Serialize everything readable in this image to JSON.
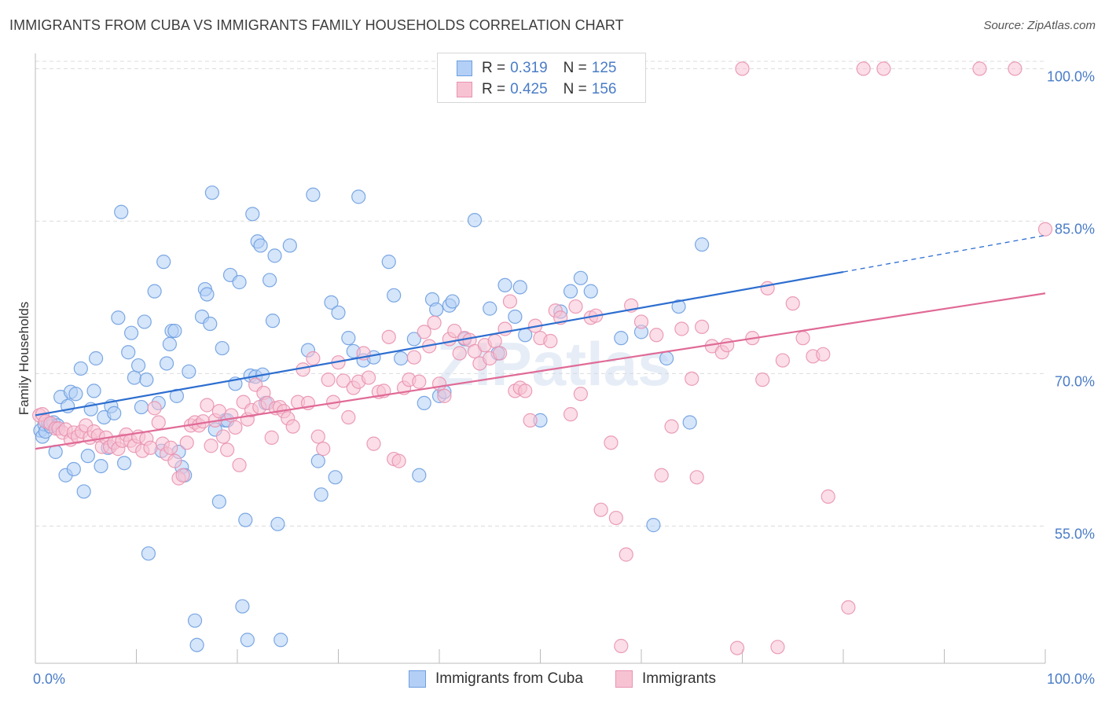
{
  "title": "IMMIGRANTS FROM CUBA VS IMMIGRANTS FAMILY HOUSEHOLDS CORRELATION CHART",
  "source": "Source: ZipAtlas.com",
  "watermark": "ZIPatlas",
  "legend": {
    "series": [
      {
        "r_label": "R =",
        "r_value": "0.319",
        "n_label": "N =",
        "n_value": "125"
      },
      {
        "r_label": "R =",
        "r_value": "0.425",
        "n_label": "N =",
        "n_value": "156"
      }
    ]
  },
  "bottom_legend": [
    "Immigrants from Cuba",
    "Immigrants"
  ],
  "colors": {
    "blue_fill": "#b3cff5",
    "blue_stroke": "#6e9fe0",
    "blue_line": "#2d6ed0",
    "pink_fill": "#f7c3d3",
    "pink_stroke": "#e992b0",
    "pink_line": "#e06a96",
    "grid": "#dcdcdc",
    "axis": "#bbbbbb",
    "tick_text": "#4a7cc7"
  },
  "chart_data": {
    "type": "scatter",
    "title": "IMMIGRANTS FROM CUBA VS IMMIGRANTS FAMILY HOUSEHOLDS CORRELATION CHART",
    "xlabel": "",
    "ylabel": "Family Households",
    "xlim": [
      0,
      100
    ],
    "ylim": [
      41.5,
      101.5
    ],
    "x_tick_labels": [
      "0.0%",
      "100.0%"
    ],
    "y_tick_labels": [
      "55.0%",
      "70.0%",
      "85.0%",
      "100.0%"
    ],
    "y_ticks": [
      55,
      70,
      85,
      100
    ],
    "grid": true,
    "legend_position": "top-center",
    "series": [
      {
        "name": "Immigrants from Cuba",
        "trend": {
          "x0": 0,
          "y0": 65.9,
          "x1": 80,
          "y1": 80.0,
          "dashed_to_x": 100,
          "dashed_to_y": 83.6
        },
        "points": [
          [
            0.5,
            64.4
          ],
          [
            0.7,
            63.8
          ],
          [
            0.9,
            65.0
          ],
          [
            1.0,
            64.3
          ],
          [
            1.3,
            65.1
          ],
          [
            1.5,
            64.8
          ],
          [
            1.8,
            65.2
          ],
          [
            2.0,
            62.3
          ],
          [
            2.2,
            64.9
          ],
          [
            2.5,
            67.7
          ],
          [
            3.0,
            60.0
          ],
          [
            3.2,
            66.8
          ],
          [
            3.5,
            68.2
          ],
          [
            3.8,
            60.6
          ],
          [
            4.0,
            68.0
          ],
          [
            4.5,
            70.5
          ],
          [
            4.8,
            58.4
          ],
          [
            5.2,
            61.9
          ],
          [
            5.5,
            66.5
          ],
          [
            5.8,
            68.3
          ],
          [
            6.0,
            71.5
          ],
          [
            6.5,
            60.9
          ],
          [
            6.8,
            65.7
          ],
          [
            7.2,
            62.7
          ],
          [
            7.5,
            66.8
          ],
          [
            7.8,
            66.1
          ],
          [
            8.2,
            75.5
          ],
          [
            8.5,
            85.9
          ],
          [
            8.8,
            61.2
          ],
          [
            9.2,
            72.1
          ],
          [
            9.5,
            74.0
          ],
          [
            9.8,
            69.6
          ],
          [
            10.2,
            70.8
          ],
          [
            10.5,
            66.7
          ],
          [
            10.8,
            75.1
          ],
          [
            11.0,
            69.4
          ],
          [
            11.2,
            52.3
          ],
          [
            11.8,
            78.1
          ],
          [
            12.2,
            67.1
          ],
          [
            12.5,
            62.4
          ],
          [
            12.7,
            81.0
          ],
          [
            13.0,
            71.0
          ],
          [
            13.3,
            72.9
          ],
          [
            13.5,
            74.2
          ],
          [
            13.8,
            74.2
          ],
          [
            14.0,
            67.8
          ],
          [
            14.2,
            62.3
          ],
          [
            14.5,
            60.8
          ],
          [
            14.8,
            60.0
          ],
          [
            15.2,
            70.2
          ],
          [
            15.8,
            45.7
          ],
          [
            16.0,
            43.3
          ],
          [
            16.5,
            75.6
          ],
          [
            16.8,
            78.3
          ],
          [
            17.0,
            77.8
          ],
          [
            17.3,
            74.9
          ],
          [
            17.5,
            87.8
          ],
          [
            17.8,
            64.5
          ],
          [
            18.2,
            57.4
          ],
          [
            18.5,
            72.5
          ],
          [
            18.8,
            65.4
          ],
          [
            19.0,
            65.4
          ],
          [
            19.3,
            79.7
          ],
          [
            19.8,
            69.0
          ],
          [
            20.2,
            79.0
          ],
          [
            20.5,
            47.1
          ],
          [
            20.8,
            55.6
          ],
          [
            21.0,
            43.8
          ],
          [
            21.3,
            69.8
          ],
          [
            21.5,
            85.7
          ],
          [
            21.8,
            69.7
          ],
          [
            22.0,
            83.0
          ],
          [
            22.3,
            82.6
          ],
          [
            22.5,
            69.9
          ],
          [
            22.8,
            67.1
          ],
          [
            23.2,
            79.2
          ],
          [
            23.5,
            75.2
          ],
          [
            23.7,
            81.6
          ],
          [
            24.0,
            55.2
          ],
          [
            24.3,
            43.8
          ],
          [
            25.2,
            82.6
          ],
          [
            27.0,
            72.3
          ],
          [
            27.5,
            87.6
          ],
          [
            28.0,
            61.4
          ],
          [
            28.3,
            58.1
          ],
          [
            29.3,
            77.0
          ],
          [
            29.7,
            59.8
          ],
          [
            30.0,
            76.0
          ],
          [
            31.0,
            73.5
          ],
          [
            31.5,
            72.2
          ],
          [
            32.0,
            87.4
          ],
          [
            32.5,
            71.3
          ],
          [
            33.5,
            71.6
          ],
          [
            35.0,
            81.0
          ],
          [
            35.5,
            77.7
          ],
          [
            36.2,
            71.5
          ],
          [
            37.5,
            73.4
          ],
          [
            38.0,
            60.0
          ],
          [
            38.5,
            67.1
          ],
          [
            39.3,
            77.3
          ],
          [
            39.7,
            76.3
          ],
          [
            40.0,
            67.8
          ],
          [
            40.5,
            68.2
          ],
          [
            41.0,
            76.7
          ],
          [
            41.3,
            77.1
          ],
          [
            42.5,
            73.4
          ],
          [
            43.5,
            85.1
          ],
          [
            45.0,
            76.4
          ],
          [
            45.8,
            72.0
          ],
          [
            46.5,
            78.7
          ],
          [
            47.5,
            75.6
          ],
          [
            48.0,
            78.5
          ],
          [
            48.5,
            73.8
          ],
          [
            50.0,
            65.4
          ],
          [
            52.0,
            76.1
          ],
          [
            53.0,
            78.1
          ],
          [
            54.0,
            79.4
          ],
          [
            55.0,
            78.1
          ],
          [
            58.0,
            73.5
          ],
          [
            60.0,
            74.1
          ],
          [
            61.2,
            55.1
          ],
          [
            62.5,
            71.5
          ],
          [
            63.7,
            76.6
          ],
          [
            64.8,
            65.2
          ],
          [
            66.0,
            82.7
          ]
        ]
      },
      {
        "name": "Immigrants",
        "trend": {
          "x0": 0,
          "y0": 62.6,
          "x1": 100,
          "y1": 77.9
        },
        "points": [
          [
            0.4,
            65.9
          ],
          [
            0.7,
            66.0
          ],
          [
            1.0,
            65.3
          ],
          [
            1.5,
            65.1
          ],
          [
            2.0,
            64.6
          ],
          [
            2.3,
            64.6
          ],
          [
            2.7,
            64.2
          ],
          [
            3.0,
            64.5
          ],
          [
            3.5,
            63.5
          ],
          [
            3.8,
            64.2
          ],
          [
            4.2,
            63.8
          ],
          [
            4.6,
            64.3
          ],
          [
            5.0,
            64.9
          ],
          [
            5.4,
            63.7
          ],
          [
            5.8,
            64.3
          ],
          [
            6.2,
            63.9
          ],
          [
            6.6,
            62.8
          ],
          [
            7.0,
            63.7
          ],
          [
            7.4,
            62.8
          ],
          [
            7.8,
            63.2
          ],
          [
            8.2,
            62.6
          ],
          [
            8.6,
            63.4
          ],
          [
            9.0,
            64.0
          ],
          [
            9.4,
            63.4
          ],
          [
            9.8,
            62.9
          ],
          [
            10.2,
            63.8
          ],
          [
            10.6,
            62.4
          ],
          [
            11.0,
            63.6
          ],
          [
            11.4,
            62.7
          ],
          [
            11.8,
            66.6
          ],
          [
            12.2,
            65.2
          ],
          [
            12.6,
            63.1
          ],
          [
            13.0,
            62.1
          ],
          [
            13.4,
            62.7
          ],
          [
            13.8,
            61.4
          ],
          [
            14.2,
            59.7
          ],
          [
            14.6,
            60.0
          ],
          [
            15.0,
            63.2
          ],
          [
            15.4,
            64.9
          ],
          [
            15.8,
            65.2
          ],
          [
            16.2,
            64.9
          ],
          [
            16.6,
            65.3
          ],
          [
            17.0,
            66.9
          ],
          [
            17.4,
            62.9
          ],
          [
            17.8,
            65.4
          ],
          [
            18.2,
            66.3
          ],
          [
            18.6,
            63.8
          ],
          [
            19.0,
            62.5
          ],
          [
            19.4,
            65.9
          ],
          [
            19.8,
            64.7
          ],
          [
            20.2,
            61.0
          ],
          [
            20.6,
            67.2
          ],
          [
            21.0,
            65.5
          ],
          [
            21.4,
            66.4
          ],
          [
            21.8,
            68.9
          ],
          [
            22.2,
            66.7
          ],
          [
            22.6,
            68.1
          ],
          [
            23.0,
            67.1
          ],
          [
            23.4,
            63.7
          ],
          [
            23.8,
            66.6
          ],
          [
            24.2,
            66.7
          ],
          [
            24.6,
            66.3
          ],
          [
            25.0,
            65.6
          ],
          [
            25.5,
            64.8
          ],
          [
            26.0,
            67.2
          ],
          [
            26.5,
            70.4
          ],
          [
            27.0,
            67.1
          ],
          [
            27.5,
            71.5
          ],
          [
            28.0,
            63.8
          ],
          [
            28.5,
            62.6
          ],
          [
            29.0,
            69.4
          ],
          [
            29.5,
            67.2
          ],
          [
            30.0,
            71.1
          ],
          [
            30.5,
            69.3
          ],
          [
            31.0,
            65.7
          ],
          [
            31.5,
            68.6
          ],
          [
            32.0,
            69.2
          ],
          [
            32.5,
            72.0
          ],
          [
            33.0,
            69.6
          ],
          [
            33.5,
            63.1
          ],
          [
            34.0,
            68.2
          ],
          [
            34.5,
            68.3
          ],
          [
            35.0,
            73.6
          ],
          [
            35.5,
            61.6
          ],
          [
            36.0,
            61.4
          ],
          [
            36.5,
            68.6
          ],
          [
            37.0,
            69.4
          ],
          [
            37.5,
            71.6
          ],
          [
            38.0,
            69.2
          ],
          [
            38.5,
            74.1
          ],
          [
            39.0,
            72.7
          ],
          [
            39.5,
            75.0
          ],
          [
            40.0,
            69.0
          ],
          [
            40.5,
            67.8
          ],
          [
            41.0,
            73.4
          ],
          [
            41.5,
            74.2
          ],
          [
            42.0,
            72.0
          ],
          [
            42.5,
            73.5
          ],
          [
            43.0,
            73.3
          ],
          [
            43.5,
            72.2
          ],
          [
            44.0,
            71.0
          ],
          [
            44.5,
            72.8
          ],
          [
            45.0,
            71.5
          ],
          [
            45.5,
            73.2
          ],
          [
            46.0,
            72.0
          ],
          [
            46.5,
            74.4
          ],
          [
            47.0,
            77.1
          ],
          [
            47.5,
            68.3
          ],
          [
            48.0,
            68.6
          ],
          [
            48.5,
            68.3
          ],
          [
            49.0,
            65.4
          ],
          [
            49.5,
            74.7
          ],
          [
            50.0,
            73.5
          ],
          [
            51.0,
            73.2
          ],
          [
            51.5,
            76.2
          ],
          [
            52.0,
            75.5
          ],
          [
            53.0,
            66.0
          ],
          [
            53.5,
            76.6
          ],
          [
            54.0,
            68.0
          ],
          [
            55.0,
            75.5
          ],
          [
            55.5,
            75.7
          ],
          [
            56.0,
            56.6
          ],
          [
            57.0,
            63.2
          ],
          [
            57.5,
            55.8
          ],
          [
            58.0,
            43.2
          ],
          [
            58.5,
            52.2
          ],
          [
            59.0,
            76.7
          ],
          [
            60.0,
            75.1
          ],
          [
            61.5,
            73.8
          ],
          [
            62.0,
            60.0
          ],
          [
            63.0,
            64.8
          ],
          [
            64.0,
            74.4
          ],
          [
            65.0,
            69.5
          ],
          [
            65.5,
            59.8
          ],
          [
            66.0,
            74.6
          ],
          [
            67.0,
            72.7
          ],
          [
            68.0,
            72.1
          ],
          [
            68.5,
            72.8
          ],
          [
            69.5,
            43.0
          ],
          [
            70.0,
            100.0
          ],
          [
            71.0,
            73.5
          ],
          [
            72.0,
            69.4
          ],
          [
            72.5,
            78.4
          ],
          [
            73.5,
            43.1
          ],
          [
            74.0,
            71.3
          ],
          [
            75.0,
            76.9
          ],
          [
            76.0,
            73.5
          ],
          [
            77.0,
            71.7
          ],
          [
            78.0,
            71.9
          ],
          [
            78.5,
            57.9
          ],
          [
            80.5,
            47.0
          ],
          [
            82.0,
            100.0
          ],
          [
            84.0,
            100.0
          ],
          [
            93.5,
            100.0
          ],
          [
            97.0,
            100.0
          ],
          [
            100.0,
            84.2
          ]
        ]
      }
    ]
  }
}
